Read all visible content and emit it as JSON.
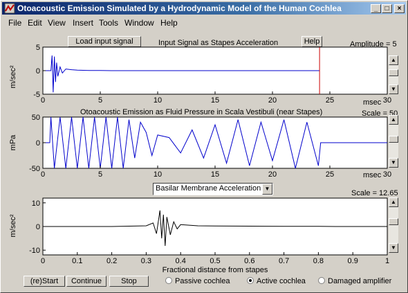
{
  "window": {
    "title": "Otoacoustic Emission Simulated by a Hydrodynamic Model of the Human Cochlea",
    "controls": [
      "_",
      "□",
      "×"
    ]
  },
  "menu": [
    {
      "label": "File",
      "key": "F"
    },
    {
      "label": "Edit",
      "key": "E"
    },
    {
      "label": "View",
      "key": "V"
    },
    {
      "label": "Insert",
      "key": "I"
    },
    {
      "label": "Tools",
      "key": "T"
    },
    {
      "label": "Window",
      "key": "W"
    },
    {
      "label": "Help",
      "key": "H"
    }
  ],
  "toolbar": {
    "load_button": "Load input signal",
    "help_button": "Help"
  },
  "panel1": {
    "title": "Input Signal as Stapes Acceleration",
    "scale_label": "Amplitude  = 5",
    "ylabel": "m/sec²",
    "unit": "msec"
  },
  "panel2": {
    "title": "Otoacoustic Emission as Fluid Pressure in Scala Vestibuli (near Stapes)",
    "scale_label": "Scale = 50",
    "ylabel": "mPa",
    "unit": "msec"
  },
  "panel3": {
    "select_value": "Basilar Membrane Acceleration",
    "scale_label": "Scale = 12.65",
    "ylabel": "m/sec²",
    "xlabel": "Fractional distance from stapes"
  },
  "bottom": {
    "restart": "(re)Start",
    "continue": "Continue",
    "stop": "Stop",
    "radios": [
      {
        "label": "Passive cochlea",
        "selected": false
      },
      {
        "label": "Active cochlea",
        "selected": true
      },
      {
        "label": "Damaged amplifier",
        "selected": false
      }
    ]
  },
  "chart_data": [
    {
      "type": "line",
      "title": "Input Signal as Stapes Acceleration",
      "ylabel": "m/sec²",
      "xlabel": "msec",
      "xlim": [
        0,
        30
      ],
      "ylim": [
        -5,
        5
      ],
      "xticks": [
        0,
        5,
        10,
        15,
        20,
        25,
        30
      ],
      "yticks": [
        -5,
        0,
        5
      ],
      "series": [
        {
          "color": "#0000cc",
          "x": [
            0,
            0.7,
            0.8,
            0.9,
            1.0,
            1.1,
            1.2,
            1.3,
            1.5,
            1.7,
            2.0,
            2.5,
            3.0,
            3.5,
            4.0,
            5.0,
            6.0,
            24.1
          ],
          "y": [
            0,
            0,
            3.2,
            -4.6,
            3.0,
            -2.4,
            1.7,
            -1.2,
            0.8,
            -0.5,
            0.35,
            0.2,
            0.12,
            0.08,
            0.05,
            0.03,
            0,
            0
          ]
        },
        {
          "color": "#cc0000",
          "x": [
            24.1,
            24.1
          ],
          "y": [
            -5,
            5
          ]
        }
      ]
    },
    {
      "type": "line",
      "title": "Otoacoustic Emission as Fluid Pressure in Scala Vestibuli (near Stapes)",
      "ylabel": "mPa",
      "xlabel": "msec",
      "xlim": [
        0,
        30
      ],
      "ylim": [
        -50,
        50
      ],
      "xticks": [
        0,
        5,
        10,
        15,
        20,
        25,
        30
      ],
      "yticks": [
        -50,
        0,
        50
      ],
      "series": [
        {
          "color": "#0000cc",
          "x": [
            0,
            0.6,
            0.7,
            1.0,
            1.5,
            2.0,
            2.5,
            3.0,
            3.5,
            4.0,
            4.5,
            5.0,
            5.5,
            6.0,
            6.5,
            7.0,
            7.5,
            8.0,
            8.5,
            9.0,
            9.5,
            10.0,
            11.0,
            12.0,
            13.0,
            14.0,
            15.0,
            16.0,
            17.0,
            18.0,
            19.0,
            20.0,
            21.0,
            22.0,
            23.0,
            24.0,
            24.2,
            30.0
          ],
          "y": [
            0,
            0,
            50,
            -50,
            50,
            -50,
            50,
            -50,
            50,
            -50,
            50,
            -50,
            50,
            -50,
            50,
            -50,
            45,
            -30,
            40,
            20,
            -25,
            15,
            10,
            -20,
            25,
            -30,
            35,
            -40,
            45,
            -45,
            40,
            -35,
            45,
            -50,
            40,
            -45,
            0,
            0
          ]
        }
      ]
    },
    {
      "type": "line",
      "title": "",
      "ylabel": "m/sec²",
      "xlabel": "Fractional distance from stapes",
      "xlim": [
        0,
        1
      ],
      "ylim": [
        -12,
        12
      ],
      "xticks": [
        0,
        0.1,
        0.2,
        0.3,
        0.4,
        0.5,
        0.6,
        0.7,
        0.8,
        0.9,
        1
      ],
      "yticks": [
        -10,
        0,
        10
      ],
      "series": [
        {
          "color": "#000000",
          "x": [
            0,
            0.2,
            0.3,
            0.32,
            0.33,
            0.34,
            0.345,
            0.35,
            0.355,
            0.36,
            0.37,
            0.38,
            0.39,
            0.4,
            0.45,
            0.5,
            0.6,
            0.7,
            0.8,
            0.85,
            1.0
          ],
          "y": [
            0,
            0,
            0.3,
            1.5,
            -3,
            6.8,
            -5,
            5,
            -8.2,
            4,
            -3.5,
            2,
            -1,
            0.8,
            0.3,
            0.2,
            0.15,
            0.1,
            0.05,
            0,
            0
          ]
        }
      ]
    }
  ]
}
